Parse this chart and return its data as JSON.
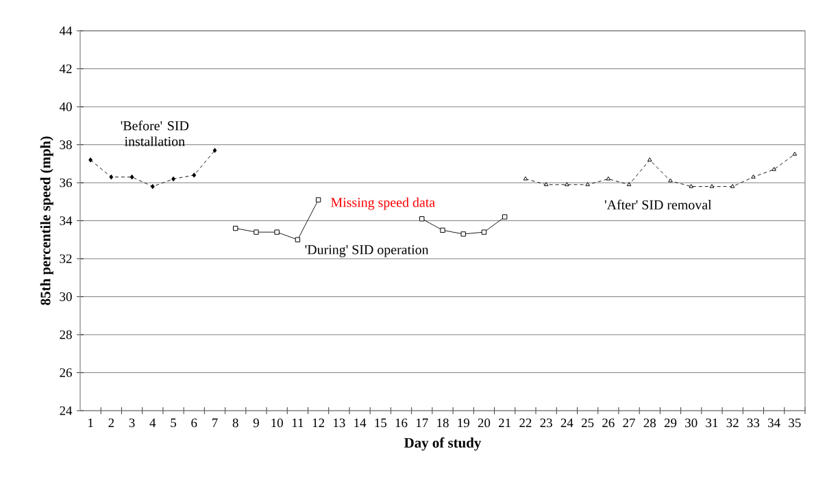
{
  "chart_data": {
    "type": "line",
    "xlabel": "Day of study",
    "ylabel": "85th percentile speed (mph)",
    "categories": [
      "1",
      "2",
      "3",
      "4",
      "5",
      "6",
      "7",
      "8",
      "9",
      "10",
      "11",
      "12",
      "13",
      "14",
      "15",
      "16",
      "17",
      "18",
      "19",
      "20",
      "21",
      "22",
      "23",
      "24",
      "25",
      "26",
      "27",
      "28",
      "29",
      "30",
      "31",
      "32",
      "33",
      "34",
      "35"
    ],
    "series": [
      {
        "color": "#000000",
        "marker": "diamond",
        "line_style": "dashed",
        "values": [
          37.2,
          36.3,
          36.3,
          35.8,
          36.2,
          36.4,
          37.7,
          null,
          null,
          null,
          null,
          null,
          null,
          null,
          null,
          null,
          null,
          null,
          null,
          null,
          null,
          null,
          null,
          null,
          null,
          null,
          null,
          null,
          null,
          null,
          null,
          null,
          null,
          null,
          null
        ]
      },
      {
        "color": "#000000",
        "marker": "square",
        "line_style": "solid",
        "values": [
          null,
          null,
          null,
          null,
          null,
          null,
          null,
          33.6,
          33.4,
          33.4,
          33.0,
          35.1,
          null,
          null,
          null,
          null,
          34.1,
          33.5,
          33.3,
          33.4,
          34.2,
          null,
          null,
          null,
          null,
          null,
          null,
          null,
          null,
          null,
          null,
          null,
          null,
          null,
          null
        ]
      },
      {
        "color": "#000000",
        "marker": "triangle",
        "line_style": "dashed",
        "values": [
          null,
          null,
          null,
          null,
          null,
          null,
          null,
          null,
          null,
          null,
          null,
          null,
          null,
          null,
          null,
          null,
          null,
          null,
          null,
          null,
          null,
          36.2,
          35.9,
          35.9,
          35.9,
          36.2,
          35.9,
          37.2,
          36.1,
          35.8,
          35.8,
          35.8,
          36.3,
          36.7,
          37.5
        ]
      }
    ],
    "ylim": [
      24,
      44
    ],
    "yticks": [
      24,
      26,
      28,
      30,
      32,
      34,
      36,
      38,
      40,
      42,
      44
    ],
    "grid": "y",
    "annotations": [
      "'Before' SID installation",
      "Missing speed data",
      "'During' SID operation",
      "'After' SID removal"
    ]
  }
}
